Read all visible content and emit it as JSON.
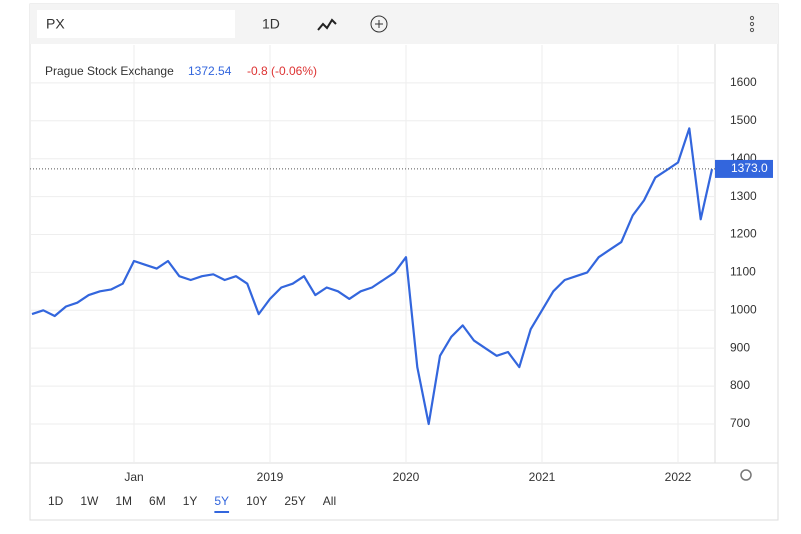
{
  "toolbar": {
    "symbol": "PX",
    "interval": "1D"
  },
  "header": {
    "name": "Prague Stock Exchange",
    "price": "1372.54",
    "change": "-0.8 (-0.06%)"
  },
  "range_buttons": [
    "1D",
    "1W",
    "1M",
    "6M",
    "1Y",
    "5Y",
    "10Y",
    "25Y",
    "All"
  ],
  "active_range": "5Y",
  "chart_data": {
    "type": "line",
    "color": "#3366dd",
    "categories": [
      null,
      null,
      null,
      null,
      null,
      null,
      null,
      null,
      null,
      "Jan",
      null,
      null,
      null,
      null,
      null,
      null,
      null,
      null,
      null,
      null,
      null,
      "2019",
      null,
      null,
      null,
      null,
      null,
      null,
      null,
      null,
      null,
      null,
      null,
      "2020",
      null,
      null,
      null,
      null,
      null,
      null,
      null,
      null,
      null,
      null,
      null,
      "2021",
      null,
      null,
      null,
      null,
      null,
      null,
      null,
      null,
      null,
      null,
      null,
      "2022",
      null,
      null,
      null
    ],
    "values": [
      990,
      1000,
      985,
      1010,
      1020,
      1040,
      1050,
      1055,
      1070,
      1130,
      1120,
      1110,
      1130,
      1090,
      1080,
      1090,
      1095,
      1080,
      1090,
      1070,
      990,
      1030,
      1060,
      1070,
      1090,
      1040,
      1060,
      1050,
      1030,
      1050,
      1060,
      1080,
      1100,
      1140,
      850,
      700,
      880,
      930,
      960,
      920,
      900,
      880,
      890,
      850,
      950,
      1000,
      1050,
      1080,
      1090,
      1100,
      1140,
      1160,
      1180,
      1250,
      1290,
      1350,
      1370,
      1390,
      1480,
      1240,
      1372.54
    ],
    "ylim": [
      597,
      1700
    ],
    "yticks": [
      700,
      800,
      900,
      1000,
      1100,
      1200,
      1300,
      1400,
      1500,
      1600
    ],
    "last_price": {
      "value": 1373.0,
      "label": "1373.0"
    }
  }
}
